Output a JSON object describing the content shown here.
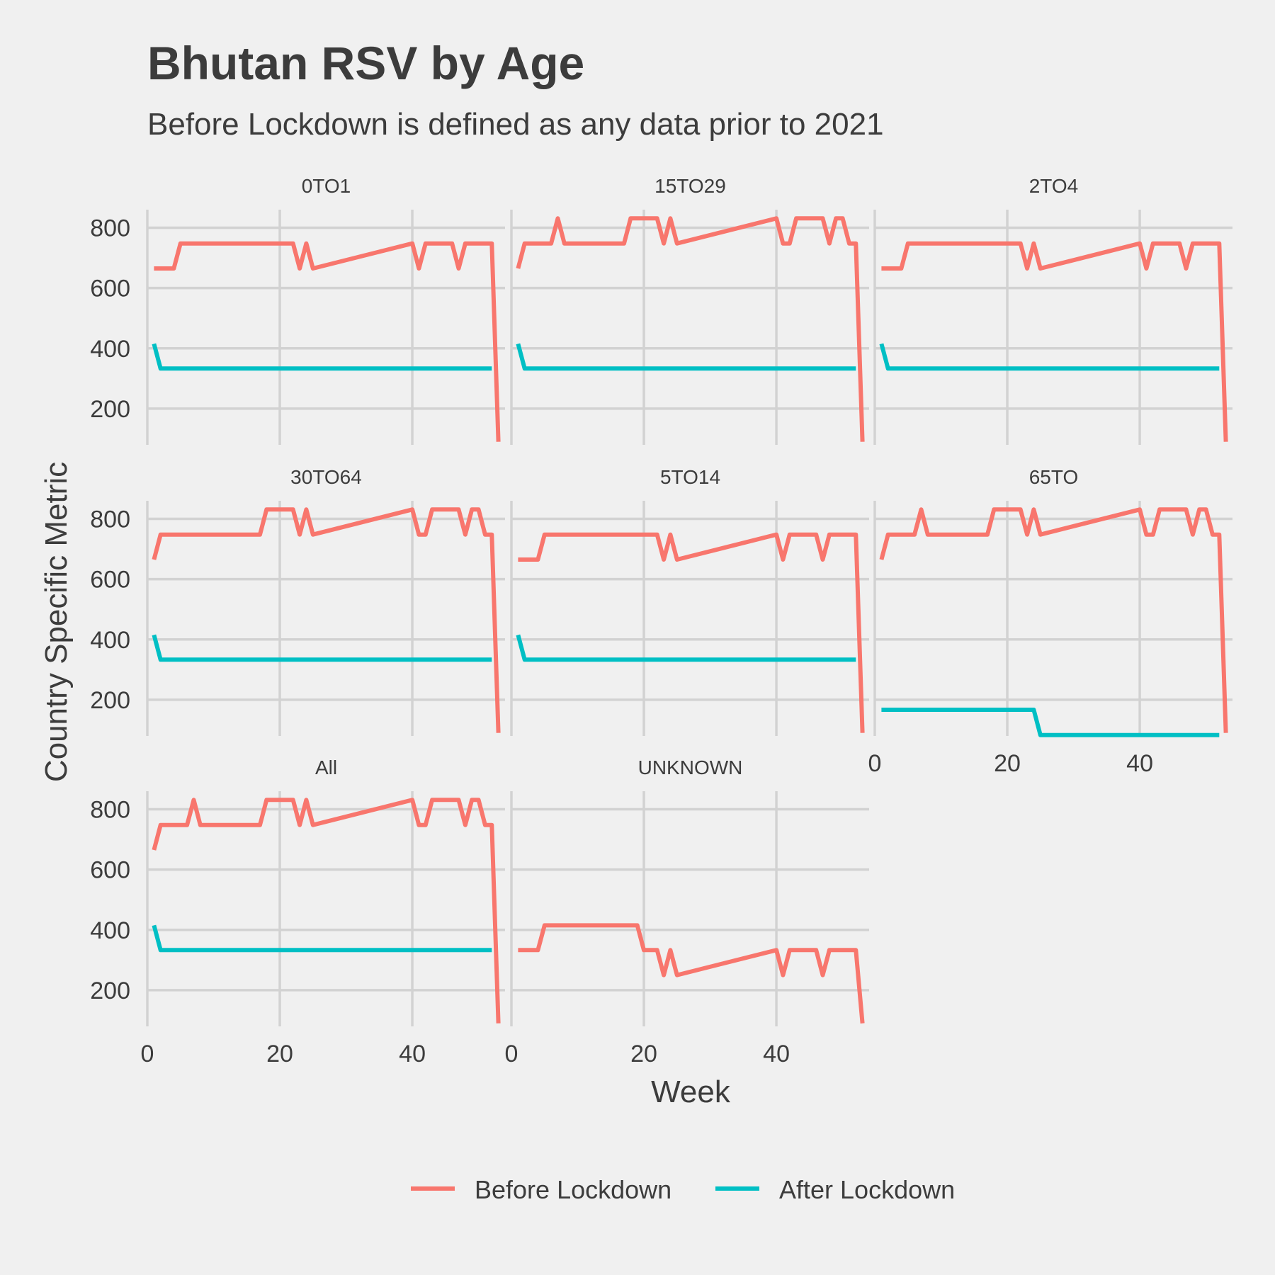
{
  "chart_data": {
    "type": "line",
    "title": "Bhutan RSV by Age",
    "subtitle": "Before Lockdown is defined as any data prior to 2021",
    "xlabel": "Week",
    "ylabel": "Country Specific Metric",
    "xlim": [
      0,
      54
    ],
    "ylim": [
      80,
      860
    ],
    "x_ticks": [
      0,
      20,
      40
    ],
    "y_ticks": [
      200,
      400,
      600,
      800
    ],
    "grid": true,
    "legend_position": "bottom",
    "legend": [
      {
        "name": "Before Lockdown",
        "color": "#f8766d"
      },
      {
        "name": "After Lockdown",
        "color": "#00bfc4"
      }
    ],
    "panels": [
      {
        "label": "0TO1",
        "series": [
          {
            "name": "Before Lockdown",
            "color": "#f8766d",
            "x": [
              1,
              4,
              5,
              22,
              23,
              24,
              25,
              40,
              41,
              42,
              46,
              47,
              48,
              52,
              53
            ],
            "y": [
              665,
              665,
              748,
              748,
              665,
              748,
              665,
              748,
              665,
              748,
              748,
              665,
              748,
              748,
              90
            ]
          },
          {
            "name": "After Lockdown",
            "color": "#00bfc4",
            "x": [
              1,
              2,
              52
            ],
            "y": [
              415,
              333,
              333
            ]
          }
        ]
      },
      {
        "label": "15TO29",
        "series": [
          {
            "name": "Before Lockdown",
            "color": "#f8766d",
            "x": [
              1,
              2,
              6,
              7,
              8,
              17,
              18,
              22,
              23,
              24,
              25,
              40,
              41,
              42,
              43,
              47,
              48,
              49,
              50,
              51,
              52,
              53
            ],
            "y": [
              665,
              748,
              748,
              831,
              748,
              748,
              831,
              831,
              748,
              831,
              748,
              831,
              748,
              748,
              831,
              831,
              748,
              831,
              831,
              748,
              748,
              90
            ]
          },
          {
            "name": "After Lockdown",
            "color": "#00bfc4",
            "x": [
              1,
              2,
              52
            ],
            "y": [
              415,
              333,
              333
            ]
          }
        ]
      },
      {
        "label": "2TO4",
        "series": [
          {
            "name": "Before Lockdown",
            "color": "#f8766d",
            "x": [
              1,
              4,
              5,
              22,
              23,
              24,
              25,
              40,
              41,
              42,
              46,
              47,
              48,
              52,
              53
            ],
            "y": [
              665,
              665,
              748,
              748,
              665,
              748,
              665,
              748,
              665,
              748,
              748,
              665,
              748,
              748,
              90
            ]
          },
          {
            "name": "After Lockdown",
            "color": "#00bfc4",
            "x": [
              1,
              2,
              52
            ],
            "y": [
              415,
              333,
              333
            ]
          }
        ]
      },
      {
        "label": "30TO64",
        "series": [
          {
            "name": "Before Lockdown",
            "color": "#f8766d",
            "x": [
              1,
              2,
              17,
              18,
              22,
              23,
              24,
              25,
              40,
              41,
              42,
              43,
              47,
              48,
              49,
              50,
              51,
              52,
              53
            ],
            "y": [
              665,
              748,
              748,
              831,
              831,
              748,
              831,
              748,
              831,
              748,
              748,
              831,
              831,
              748,
              831,
              831,
              748,
              748,
              90
            ]
          },
          {
            "name": "After Lockdown",
            "color": "#00bfc4",
            "x": [
              1,
              2,
              52
            ],
            "y": [
              415,
              333,
              333
            ]
          }
        ]
      },
      {
        "label": "5TO14",
        "series": [
          {
            "name": "Before Lockdown",
            "color": "#f8766d",
            "x": [
              1,
              4,
              5,
              22,
              23,
              24,
              25,
              40,
              41,
              42,
              46,
              47,
              48,
              52,
              53
            ],
            "y": [
              665,
              665,
              748,
              748,
              665,
              748,
              665,
              748,
              665,
              748,
              748,
              665,
              748,
              748,
              90
            ]
          },
          {
            "name": "After Lockdown",
            "color": "#00bfc4",
            "x": [
              1,
              2,
              52
            ],
            "y": [
              415,
              333,
              333
            ]
          }
        ]
      },
      {
        "label": "65TO",
        "series": [
          {
            "name": "Before Lockdown",
            "color": "#f8766d",
            "x": [
              1,
              2,
              6,
              7,
              8,
              17,
              18,
              22,
              23,
              24,
              25,
              40,
              41,
              42,
              43,
              47,
              48,
              49,
              50,
              51,
              52,
              53
            ],
            "y": [
              665,
              748,
              748,
              831,
              748,
              748,
              831,
              831,
              748,
              831,
              748,
              831,
              748,
              748,
              831,
              831,
              748,
              831,
              831,
              748,
              748,
              90
            ]
          },
          {
            "name": "After Lockdown",
            "color": "#00bfc4",
            "x": [
              1,
              24,
              25,
              52
            ],
            "y": [
              167,
              167,
              83,
              83
            ]
          }
        ]
      },
      {
        "label": "All",
        "series": [
          {
            "name": "Before Lockdown",
            "color": "#f8766d",
            "x": [
              1,
              2,
              6,
              7,
              8,
              17,
              18,
              22,
              23,
              24,
              25,
              40,
              41,
              42,
              43,
              47,
              48,
              49,
              50,
              51,
              52,
              53
            ],
            "y": [
              665,
              748,
              748,
              831,
              748,
              748,
              831,
              831,
              748,
              831,
              748,
              831,
              748,
              748,
              831,
              831,
              748,
              831,
              831,
              748,
              748,
              90
            ]
          },
          {
            "name": "After Lockdown",
            "color": "#00bfc4",
            "x": [
              1,
              2,
              52
            ],
            "y": [
              415,
              333,
              333
            ]
          }
        ]
      },
      {
        "label": "UNKNOWN",
        "series": [
          {
            "name": "Before Lockdown",
            "color": "#f8766d",
            "x": [
              1,
              4,
              5,
              19,
              20,
              22,
              23,
              24,
              25,
              40,
              41,
              42,
              46,
              47,
              48,
              52,
              53
            ],
            "y": [
              333,
              333,
              415,
              415,
              333,
              333,
              250,
              333,
              250,
              333,
              250,
              333,
              333,
              250,
              333,
              333,
              90
            ]
          }
        ]
      }
    ]
  }
}
